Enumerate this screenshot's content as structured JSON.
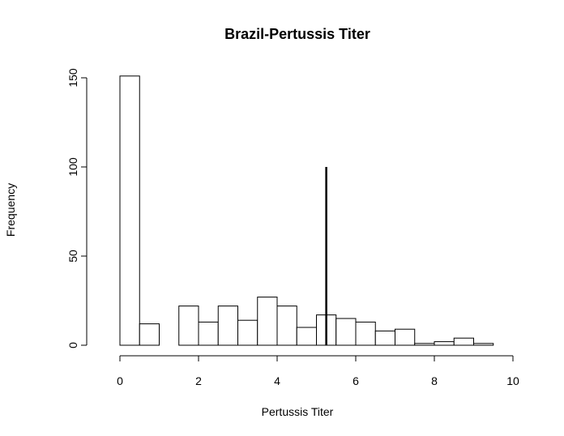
{
  "chart_data": {
    "type": "bar",
    "title": "Brazil-Pertussis Titer",
    "xlabel": "Pertussis Titer",
    "ylabel": "Frequency",
    "xlim": [
      0,
      10
    ],
    "ylim": [
      0,
      150
    ],
    "x_ticks": [
      0,
      2,
      4,
      6,
      8,
      10
    ],
    "y_ticks": [
      0,
      50,
      100,
      150
    ],
    "bin_width": 0.5,
    "bins": [
      {
        "start": 0.0,
        "end": 0.5,
        "count": 151
      },
      {
        "start": 0.5,
        "end": 1.0,
        "count": 12
      },
      {
        "start": 1.0,
        "end": 1.5,
        "count": 0
      },
      {
        "start": 1.5,
        "end": 2.0,
        "count": 22
      },
      {
        "start": 2.0,
        "end": 2.5,
        "count": 13
      },
      {
        "start": 2.5,
        "end": 3.0,
        "count": 22
      },
      {
        "start": 3.0,
        "end": 3.5,
        "count": 14
      },
      {
        "start": 3.5,
        "end": 4.0,
        "count": 27
      },
      {
        "start": 4.0,
        "end": 4.5,
        "count": 22
      },
      {
        "start": 4.5,
        "end": 5.0,
        "count": 10
      },
      {
        "start": 5.0,
        "end": 5.5,
        "count": 17
      },
      {
        "start": 5.5,
        "end": 6.0,
        "count": 15
      },
      {
        "start": 6.0,
        "end": 6.5,
        "count": 13
      },
      {
        "start": 6.5,
        "end": 7.0,
        "count": 8
      },
      {
        "start": 7.0,
        "end": 7.5,
        "count": 9
      },
      {
        "start": 7.5,
        "end": 8.0,
        "count": 1
      },
      {
        "start": 8.0,
        "end": 8.5,
        "count": 2
      },
      {
        "start": 8.5,
        "end": 9.0,
        "count": 4
      },
      {
        "start": 9.0,
        "end": 9.5,
        "count": 1
      }
    ],
    "reference_line": {
      "x": 5.25,
      "y_from": 0,
      "y_to": 100
    },
    "grid": false,
    "legend": "none"
  }
}
